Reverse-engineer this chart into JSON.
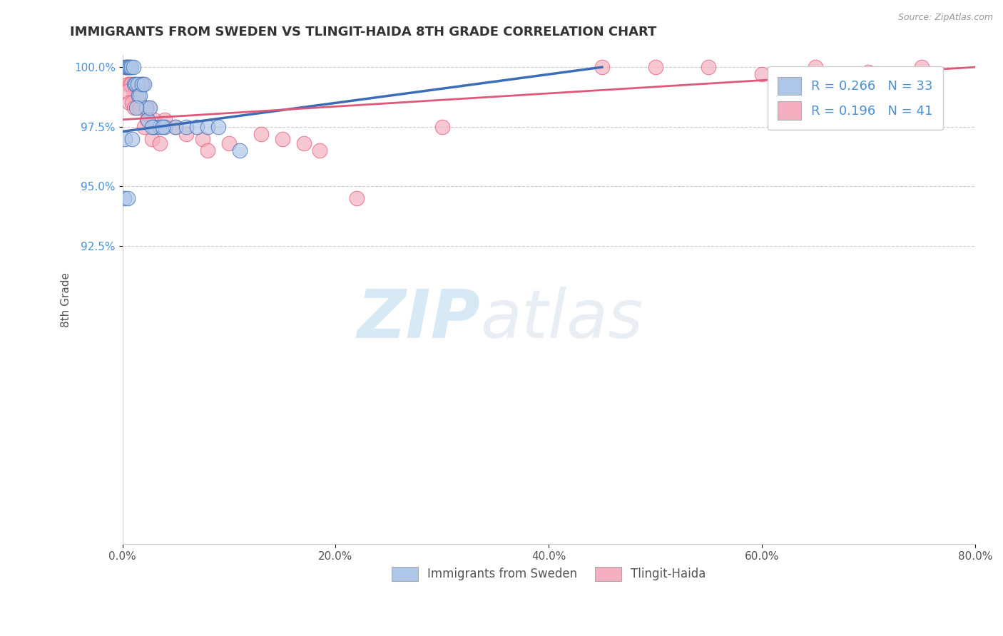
{
  "title": "IMMIGRANTS FROM SWEDEN VS TLINGIT-HAIDA 8TH GRADE CORRELATION CHART",
  "source": "Source: ZipAtlas.com",
  "ylabel": "8th Grade",
  "legend_labels": [
    "Immigrants from Sweden",
    "Tlingit-Haida"
  ],
  "legend_R": [
    0.266,
    0.196
  ],
  "legend_N": [
    33,
    41
  ],
  "blue_color": "#aec6e8",
  "pink_color": "#f4b0c0",
  "trendline_blue": "#3a6db5",
  "trendline_pink": "#e05878",
  "xmin": 0.0,
  "xmax": 80.0,
  "ymin": 80.0,
  "ymax": 100.5,
  "yticks": [
    92.5,
    95.0,
    97.5,
    100.0
  ],
  "xticks": [
    0.0,
    20.0,
    40.0,
    60.0,
    80.0
  ],
  "xtick_labels": [
    "0.0%",
    "20.0%",
    "40.0%",
    "60.0%",
    "80.0%"
  ],
  "ytick_labels": [
    "92.5%",
    "95.0%",
    "97.5%",
    "100.0%"
  ],
  "watermark_zip": "ZIP",
  "watermark_atlas": "atlas",
  "blue_x": [
    0.3,
    0.4,
    0.5,
    0.6,
    0.7,
    0.8,
    1.0,
    1.1,
    1.2,
    1.4,
    1.5,
    1.6,
    1.8,
    2.0,
    2.2,
    2.4,
    2.6,
    3.0,
    3.5,
    4.0,
    5.0,
    6.0,
    7.0,
    8.0,
    9.0,
    11.0,
    0.2,
    0.9,
    1.3,
    2.8,
    3.8,
    0.15,
    0.5
  ],
  "blue_y": [
    100.0,
    100.0,
    100.0,
    100.0,
    100.0,
    100.0,
    100.0,
    99.3,
    99.3,
    99.3,
    98.8,
    98.8,
    99.3,
    99.3,
    98.3,
    97.8,
    98.3,
    97.5,
    97.5,
    97.5,
    97.5,
    97.5,
    97.5,
    97.5,
    97.5,
    96.5,
    97.0,
    97.0,
    98.3,
    97.5,
    97.5,
    94.5,
    94.5
  ],
  "pink_x": [
    0.3,
    0.5,
    0.7,
    0.8,
    1.0,
    1.2,
    1.4,
    1.5,
    1.7,
    1.9,
    2.1,
    2.3,
    2.5,
    3.0,
    4.0,
    5.0,
    6.0,
    7.5,
    10.0,
    13.0,
    15.0,
    17.0,
    18.5,
    0.4,
    0.6,
    0.9,
    1.1,
    1.6,
    2.0,
    2.8,
    3.5,
    8.0,
    50.0,
    60.0,
    65.0,
    70.0,
    75.0,
    45.0,
    55.0,
    22.0,
    30.0
  ],
  "pink_y": [
    100.0,
    99.3,
    99.3,
    99.3,
    98.8,
    98.8,
    98.8,
    98.8,
    99.3,
    99.3,
    98.3,
    97.8,
    98.3,
    97.8,
    97.8,
    97.5,
    97.2,
    97.0,
    96.8,
    97.2,
    97.0,
    96.8,
    96.5,
    99.0,
    98.5,
    98.5,
    98.3,
    98.3,
    97.5,
    97.0,
    96.8,
    96.5,
    100.0,
    99.7,
    100.0,
    99.8,
    100.0,
    100.0,
    100.0,
    94.5,
    97.5
  ],
  "trendline_blue_x0": 0.0,
  "trendline_blue_x1": 45.0,
  "trendline_blue_y0": 97.3,
  "trendline_blue_y1": 100.0,
  "trendline_pink_x0": 0.0,
  "trendline_pink_x1": 80.0,
  "trendline_pink_y0": 97.8,
  "trendline_pink_y1": 100.0
}
